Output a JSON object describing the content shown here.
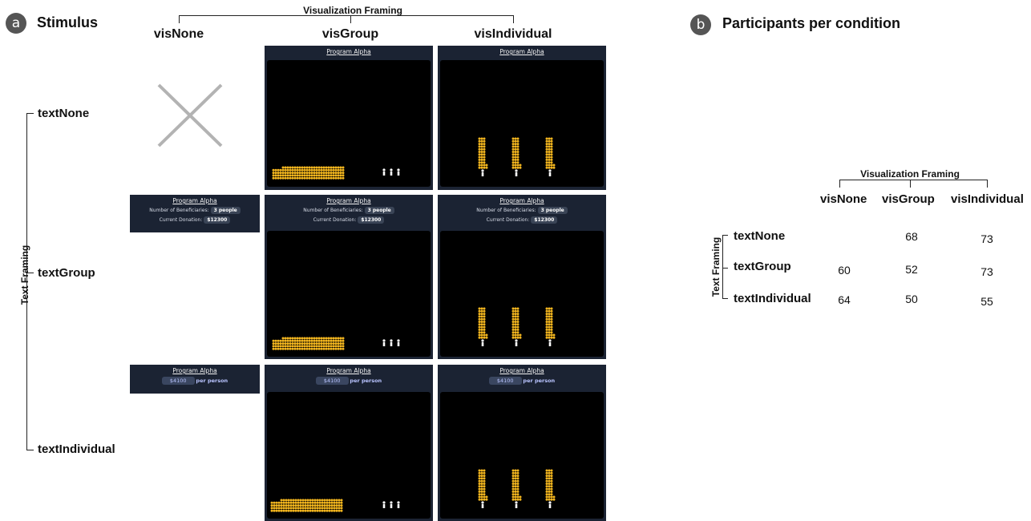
{
  "panel_a": {
    "badge": "a",
    "title": "Stimulus",
    "col_axis_title": "Visualization Framing",
    "row_axis_title": "Text Framing",
    "columns": [
      "visNone",
      "visGroup",
      "visIndividual"
    ],
    "rows": [
      "textNone",
      "textGroup",
      "textIndividual"
    ],
    "card": {
      "program": "Program Alpha",
      "beneficiaries_label": "Number of Beneficiaries:",
      "beneficiaries_value": "3 people",
      "donation_label": "Current Donation:",
      "donation_value": "$12300",
      "per_person_value": "$4100",
      "per_person_label": "per person"
    },
    "colors": {
      "header": "#1b2333",
      "canvas": "#000000",
      "coin": "#f2b51e",
      "cross": "#b3b3b3"
    }
  },
  "panel_b": {
    "badge": "b",
    "title": "Participants per condition",
    "col_axis_title": "Visualization Framing",
    "row_axis_title": "Text Framing",
    "columns": [
      "visNone",
      "visGroup",
      "visIndividual"
    ],
    "rows": [
      "textNone",
      "textGroup",
      "textIndividual"
    ],
    "values": [
      [
        "",
        "68",
        "73"
      ],
      [
        "60",
        "52",
        "73"
      ],
      [
        "64",
        "50",
        "55"
      ]
    ]
  }
}
